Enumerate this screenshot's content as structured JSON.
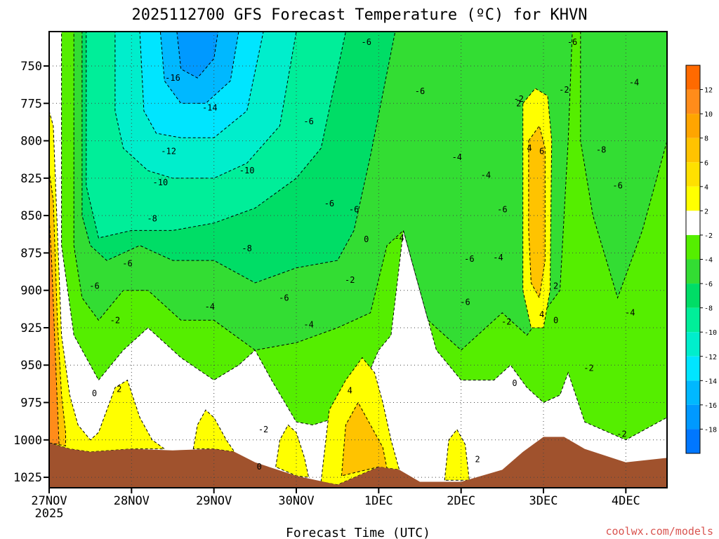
{
  "chart_data": {
    "type": "contour",
    "title": "2025112700 GFS Forecast Temperature (ºC) for KHVN",
    "xlabel": "Forecast Time (UTC)",
    "ylabel": "",
    "credit": "coolwx.com/models",
    "x_ticks": [
      {
        "label": "27NOV",
        "sublabel": "2025",
        "day": 0
      },
      {
        "label": "28NOV",
        "day": 1
      },
      {
        "label": "29NOV",
        "day": 2
      },
      {
        "label": "30NOV",
        "day": 3
      },
      {
        "label": "1DEC",
        "day": 4
      },
      {
        "label": "2DEC",
        "day": 5
      },
      {
        "label": "3DEC",
        "day": 6
      },
      {
        "label": "4DEC",
        "day": 7
      }
    ],
    "xlim": [
      0,
      7.5
    ],
    "y_ticks": [
      750,
      775,
      800,
      825,
      850,
      875,
      900,
      925,
      950,
      975,
      1000,
      1025
    ],
    "ylim": [
      1032,
      727
    ],
    "colorbar": {
      "labels": [
        "12",
        "10",
        "8",
        "6",
        "4",
        "2",
        "-2",
        "-4",
        "-6",
        "-8",
        "-10",
        "-12",
        "-14",
        "-16",
        "-18"
      ],
      "colors": [
        "#ff6a00",
        "#ff8c1a",
        "#ffa500",
        "#ffc300",
        "#ffe000",
        "#ffff00",
        "#ffffff",
        "#55ee00",
        "#33dd33",
        "#00dd66",
        "#00ee99",
        "#00eecc",
        "#00e5ff",
        "#00b8ff",
        "#0099ff",
        "#0077ff"
      ]
    },
    "terrain": {
      "color": "#a0522d",
      "points": [
        [
          0,
          1002
        ],
        [
          0.25,
          1006
        ],
        [
          0.5,
          1008
        ],
        [
          1,
          1006
        ],
        [
          1.5,
          1007
        ],
        [
          2,
          1006
        ],
        [
          2.25,
          1008
        ],
        [
          2.5,
          1015
        ],
        [
          3,
          1024
        ],
        [
          3.5,
          1030
        ],
        [
          4,
          1018
        ],
        [
          4.25,
          1020
        ],
        [
          4.5,
          1028
        ],
        [
          5,
          1028
        ],
        [
          5.5,
          1020
        ],
        [
          5.75,
          1008
        ],
        [
          6,
          998
        ],
        [
          6.25,
          998
        ],
        [
          6.5,
          1006
        ],
        [
          7,
          1015
        ],
        [
          7.5,
          1012
        ]
      ]
    },
    "regions": [
      {
        "level": "below -2",
        "color": "#55ee00",
        "points": [
          [
            0.15,
            727
          ],
          [
            7.5,
            727
          ],
          [
            7.5,
            985
          ],
          [
            7,
            1000
          ],
          [
            6.5,
            988
          ],
          [
            6.3,
            955
          ],
          [
            6.2,
            970
          ],
          [
            6,
            975
          ],
          [
            5.8,
            965
          ],
          [
            5.6,
            950
          ],
          [
            5.4,
            960
          ],
          [
            5,
            960
          ],
          [
            4.7,
            940
          ],
          [
            4.3,
            860
          ],
          [
            4.15,
            930
          ],
          [
            4,
            940
          ],
          [
            3.8,
            965
          ],
          [
            3.5,
            985
          ],
          [
            3.2,
            990
          ],
          [
            3,
            988
          ],
          [
            2.7,
            960
          ],
          [
            2.5,
            940
          ],
          [
            2.3,
            950
          ],
          [
            2,
            960
          ],
          [
            1.6,
            945
          ],
          [
            1.2,
            925
          ],
          [
            0.9,
            940
          ],
          [
            0.6,
            960
          ],
          [
            0.3,
            930
          ],
          [
            0.15,
            870
          ]
        ]
      },
      {
        "level": "below -4",
        "color": "#33dd33",
        "points": [
          [
            0.3,
            727
          ],
          [
            6.35,
            727
          ],
          [
            6.3,
            800
          ],
          [
            6.2,
            900
          ],
          [
            5.8,
            930
          ],
          [
            5.5,
            915
          ],
          [
            5,
            940
          ],
          [
            4.6,
            920
          ],
          [
            4.3,
            860
          ],
          [
            4.1,
            870
          ],
          [
            3.9,
            915
          ],
          [
            3.5,
            925
          ],
          [
            3,
            935
          ],
          [
            2.5,
            940
          ],
          [
            2,
            920
          ],
          [
            1.6,
            920
          ],
          [
            1.2,
            900
          ],
          [
            0.9,
            900
          ],
          [
            0.6,
            920
          ],
          [
            0.4,
            905
          ],
          [
            0.3,
            870
          ]
        ]
      },
      {
        "level": "below -4 (3DEC-4DEC)",
        "color": "#33dd33",
        "points": [
          [
            6.45,
            727
          ],
          [
            7.5,
            727
          ],
          [
            7.5,
            800
          ],
          [
            7.2,
            860
          ],
          [
            7,
            890
          ],
          [
            6.9,
            905
          ],
          [
            6.6,
            850
          ],
          [
            6.45,
            800
          ]
        ]
      },
      {
        "level": "below -6",
        "color": "#00dd66",
        "points": [
          [
            0.4,
            727
          ],
          [
            4.2,
            727
          ],
          [
            3.9,
            810
          ],
          [
            3.7,
            860
          ],
          [
            3.5,
            880
          ],
          [
            3,
            885
          ],
          [
            2.5,
            895
          ],
          [
            2,
            880
          ],
          [
            1.5,
            880
          ],
          [
            1.1,
            870
          ],
          [
            0.7,
            880
          ],
          [
            0.5,
            870
          ],
          [
            0.4,
            850
          ]
        ]
      },
      {
        "level": "below -8",
        "color": "#00ee99",
        "points": [
          [
            0.45,
            727
          ],
          [
            3.6,
            727
          ],
          [
            3.3,
            805
          ],
          [
            3,
            825
          ],
          [
            2.5,
            845
          ],
          [
            2,
            855
          ],
          [
            1.5,
            860
          ],
          [
            1,
            860
          ],
          [
            0.6,
            865
          ],
          [
            0.45,
            830
          ]
        ]
      },
      {
        "level": "below -10",
        "color": "#00eecc",
        "points": [
          [
            0.8,
            727
          ],
          [
            3,
            727
          ],
          [
            2.8,
            790
          ],
          [
            2.4,
            815
          ],
          [
            2,
            825
          ],
          [
            1.5,
            825
          ],
          [
            1.2,
            820
          ],
          [
            0.9,
            805
          ],
          [
            0.8,
            780
          ]
        ]
      },
      {
        "level": "below -12",
        "color": "#00e5ff",
        "points": [
          [
            1.1,
            727
          ],
          [
            2.6,
            727
          ],
          [
            2.4,
            780
          ],
          [
            2,
            798
          ],
          [
            1.6,
            798
          ],
          [
            1.3,
            795
          ],
          [
            1.15,
            780
          ]
        ]
      },
      {
        "level": "below -14",
        "color": "#00b8ff",
        "points": [
          [
            1.35,
            727
          ],
          [
            2.3,
            727
          ],
          [
            2.2,
            760
          ],
          [
            1.9,
            775
          ],
          [
            1.6,
            775
          ],
          [
            1.4,
            760
          ]
        ]
      },
      {
        "level": "below -16",
        "color": "#0099ff",
        "points": [
          [
            1.55,
            727
          ],
          [
            2.05,
            727
          ],
          [
            2,
            745
          ],
          [
            1.8,
            758
          ],
          [
            1.6,
            752
          ]
        ]
      },
      {
        "level": "above 2 (27NOV)",
        "color": "#ffff00",
        "points": [
          [
            0,
            780
          ],
          [
            0.05,
            790
          ],
          [
            0.1,
            860
          ],
          [
            0.15,
            930
          ],
          [
            0.25,
            970
          ],
          [
            0.35,
            990
          ],
          [
            0.5,
            1000
          ],
          [
            0.6,
            995
          ],
          [
            0.8,
            965
          ],
          [
            0.95,
            960
          ],
          [
            1.1,
            985
          ],
          [
            1.25,
            1000
          ],
          [
            1.4,
            1006
          ],
          [
            1,
            1006
          ],
          [
            0.5,
            1008
          ],
          [
            0.25,
            1006
          ],
          [
            0,
            1002
          ]
        ]
      },
      {
        "level": "above 4 (27NOV)",
        "color": "#ffc300",
        "points": [
          [
            0,
            820
          ],
          [
            0.05,
            840
          ],
          [
            0.1,
            920
          ],
          [
            0.15,
            970
          ],
          [
            0.2,
            995
          ],
          [
            0.2,
            1004
          ],
          [
            0,
            1002
          ]
        ]
      },
      {
        "level": "above 6 (27NOV)",
        "color": "#ff8c1a",
        "points": [
          [
            0,
            850
          ],
          [
            0.03,
            880
          ],
          [
            0.08,
            950
          ],
          [
            0.12,
            1003
          ],
          [
            0,
            1002
          ]
        ]
      },
      {
        "level": "above 2 (29NOV)",
        "color": "#ffff00",
        "points": [
          [
            1.75,
            1006
          ],
          [
            1.8,
            990
          ],
          [
            1.9,
            980
          ],
          [
            2,
            985
          ],
          [
            2.15,
            1000
          ],
          [
            2.25,
            1008
          ],
          [
            2,
            1006
          ]
        ]
      },
      {
        "level": "above 2 (30NOV)",
        "color": "#ffff00",
        "points": [
          [
            2.75,
            1018
          ],
          [
            2.8,
            1000
          ],
          [
            2.9,
            990
          ],
          [
            3,
            995
          ],
          [
            3.1,
            1012
          ],
          [
            3.15,
            1025
          ],
          [
            3,
            1024
          ]
        ]
      },
      {
        "level": "above 2 (1DEC)",
        "color": "#ffff00",
        "points": [
          [
            3.3,
            1028
          ],
          [
            3.4,
            980
          ],
          [
            3.6,
            960
          ],
          [
            3.8,
            945
          ],
          [
            3.95,
            955
          ],
          [
            4.05,
            975
          ],
          [
            4.15,
            1000
          ],
          [
            4.25,
            1020
          ],
          [
            4,
            1018
          ],
          [
            3.5,
            1030
          ]
        ]
      },
      {
        "level": "above 4 (1DEC)",
        "color": "#ffc300",
        "points": [
          [
            3.55,
            1024
          ],
          [
            3.6,
            990
          ],
          [
            3.75,
            975
          ],
          [
            3.9,
            990
          ],
          [
            4.05,
            1005
          ],
          [
            4.1,
            1019
          ],
          [
            4,
            1018
          ]
        ]
      },
      {
        "level": "above 2 (2DEC)",
        "color": "#ffff00",
        "points": [
          [
            4.8,
            1027
          ],
          [
            4.85,
            1000
          ],
          [
            4.95,
            993
          ],
          [
            5.05,
            1003
          ],
          [
            5.1,
            1027
          ]
        ]
      },
      {
        "level": "above 2 (3DEC)",
        "color": "#ffff00",
        "points": [
          [
            5.75,
            775
          ],
          [
            5.9,
            765
          ],
          [
            6.05,
            770
          ],
          [
            6.1,
            800
          ],
          [
            6.08,
            900
          ],
          [
            6,
            925
          ],
          [
            5.85,
            925
          ],
          [
            5.75,
            900
          ]
        ]
      },
      {
        "level": "above 4 (3DEC)",
        "color": "#ffc300",
        "points": [
          [
            5.82,
            800
          ],
          [
            5.95,
            790
          ],
          [
            6.02,
            805
          ],
          [
            6.02,
            880
          ],
          [
            5.95,
            905
          ],
          [
            5.85,
            895
          ],
          [
            5.82,
            860
          ]
        ]
      }
    ],
    "contour_labels": [
      {
        "text": "-16",
        "day": 1.5,
        "p": 758
      },
      {
        "text": "-14",
        "day": 1.95,
        "p": 778
      },
      {
        "text": "-12",
        "day": 1.45,
        "p": 807
      },
      {
        "text": "-10",
        "day": 1.35,
        "p": 828
      },
      {
        "text": "-10",
        "day": 2.4,
        "p": 820
      },
      {
        "text": "-8",
        "day": 1.25,
        "p": 852
      },
      {
        "text": "-8",
        "day": 2.4,
        "p": 872
      },
      {
        "text": "-8",
        "day": 6.7,
        "p": 806
      },
      {
        "text": "-6",
        "day": 0.55,
        "p": 897
      },
      {
        "text": "-6",
        "day": 0.95,
        "p": 882
      },
      {
        "text": "-6",
        "day": 2.85,
        "p": 905
      },
      {
        "text": "-6",
        "day": 3.15,
        "p": 787
      },
      {
        "text": "-6",
        "day": 3.4,
        "p": 842
      },
      {
        "text": "-6",
        "day": 3.7,
        "p": 846
      },
      {
        "text": "-6",
        "day": 3.85,
        "p": 734
      },
      {
        "text": "-6",
        "day": 4.5,
        "p": 767
      },
      {
        "text": "-6",
        "day": 5.1,
        "p": 879
      },
      {
        "text": "-6",
        "day": 5.05,
        "p": 908
      },
      {
        "text": "-6",
        "day": 5.5,
        "p": 846
      },
      {
        "text": "-6",
        "day": 6.35,
        "p": 734
      },
      {
        "text": "-6",
        "day": 6.9,
        "p": 830
      },
      {
        "text": "-4",
        "day": 1.95,
        "p": 911
      },
      {
        "text": "-4",
        "day": 3.15,
        "p": 923
      },
      {
        "text": "-4",
        "day": 4.25,
        "p": 865
      },
      {
        "text": "-4",
        "day": 4.95,
        "p": 811
      },
      {
        "text": "-4",
        "day": 5.3,
        "p": 823
      },
      {
        "text": "-4",
        "day": 5.45,
        "p": 878
      },
      {
        "text": "-4",
        "day": 7.1,
        "p": 761
      },
      {
        "text": "-4",
        "day": 7.05,
        "p": 915
      },
      {
        "text": "-2",
        "day": 0.8,
        "p": 920
      },
      {
        "text": "-2",
        "day": 2.6,
        "p": 993
      },
      {
        "text": "-2",
        "day": 3.65,
        "p": 893
      },
      {
        "text": "-2",
        "day": 5.55,
        "p": 921
      },
      {
        "text": "-2",
        "day": 5.7,
        "p": 772
      },
      {
        "text": "-2",
        "day": 6.25,
        "p": 766
      },
      {
        "text": "-2",
        "day": 6.55,
        "p": 952
      },
      {
        "text": "-2",
        "day": 6.95,
        "p": 996
      },
      {
        "text": "0",
        "day": 0.55,
        "p": 969
      },
      {
        "text": "0",
        "day": 2.55,
        "p": 1018
      },
      {
        "text": "0",
        "day": 3.85,
        "p": 866
      },
      {
        "text": "0",
        "day": 5.65,
        "p": 962
      },
      {
        "text": "0",
        "day": 6.15,
        "p": 920
      },
      {
        "text": "2",
        "day": 0.85,
        "p": 966
      },
      {
        "text": "2",
        "day": 5.2,
        "p": 1013
      },
      {
        "text": "2",
        "day": 6.15,
        "p": 897
      },
      {
        "text": "2",
        "day": 5.7,
        "p": 775
      },
      {
        "text": "4",
        "day": 3.65,
        "p": 967
      },
      {
        "text": "4",
        "day": 5.83,
        "p": 805
      },
      {
        "text": "4",
        "day": 5.98,
        "p": 916
      },
      {
        "text": "6",
        "day": 5.98,
        "p": 807
      }
    ]
  }
}
